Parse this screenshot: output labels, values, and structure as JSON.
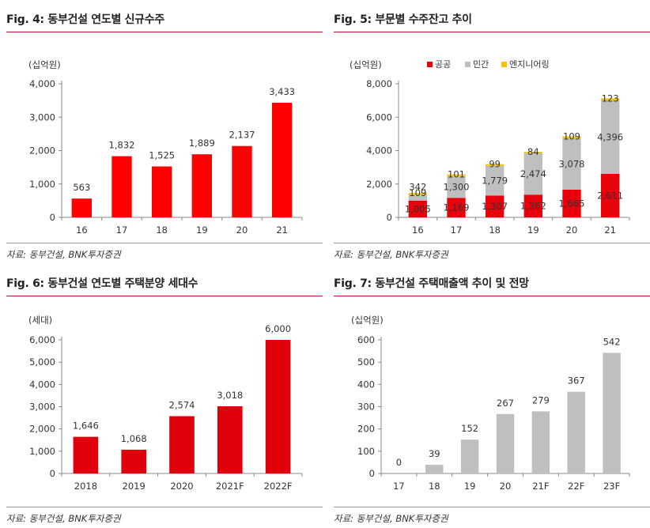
{
  "panels": [
    {
      "title": "Fig. 4: 동부건설 연도별 신규수주",
      "source": "자료: 동부건설, BNK투자증권",
      "chart_data": {
        "type": "bar",
        "unit_label": "(십억원)",
        "categories": [
          "16",
          "17",
          "18",
          "19",
          "20",
          "21"
        ],
        "series": [
          {
            "values": [
              563,
              1832,
              1525,
              1889,
              2137,
              3433
            ],
            "color": "#ff0000"
          }
        ],
        "value_labels": [
          "563",
          "1,832",
          "1,525",
          "1,889",
          "2,137",
          "3,433"
        ],
        "ylim": [
          0,
          4000
        ],
        "yticks": [
          0,
          1000,
          2000,
          3000,
          4000
        ],
        "ytick_labels": [
          "0",
          "1,000",
          "2,000",
          "3,000",
          "4,000"
        ],
        "grid": false
      }
    },
    {
      "title": "Fig. 5: 부문별 수주잔고 추이",
      "source": "자료: 동부건설, BNK투자증권",
      "chart_data": {
        "type": "bar",
        "stacked": true,
        "unit_label": "(십억원)",
        "categories": [
          "16",
          "17",
          "18",
          "19",
          "20",
          "21"
        ],
        "series": [
          {
            "name": "공공",
            "color": "#e8000b",
            "values": [
              1005,
              1169,
              1307,
              1362,
              1665,
              2611
            ],
            "labels": [
              "1,005",
              "1,169",
              "1,307",
              "1,362",
              "1,665",
              "2,611"
            ]
          },
          {
            "name": "민간",
            "color": "#bfbfbf",
            "values": [
              342,
              1300,
              1779,
              2474,
              3078,
              4396
            ],
            "labels": [
              "342",
              "1,300",
              "1,779",
              "2,474",
              "3,078",
              "4,396"
            ]
          },
          {
            "name": "엔지니어링",
            "color": "#f5c400",
            "values": [
              109,
              101,
              99,
              84,
              109,
              123
            ],
            "labels": [
              "109",
              "101",
              "99",
              "84",
              "109",
              "123"
            ]
          }
        ],
        "ylim": [
          0,
          8000
        ],
        "yticks": [
          0,
          2000,
          4000,
          6000,
          8000
        ],
        "ytick_labels": [
          "0",
          "2,000",
          "4,000",
          "6,000",
          "8,000"
        ],
        "legend_position": "top-center",
        "grid": false
      }
    },
    {
      "title": "Fig. 6: 동부건설 연도별 주택분양 세대수",
      "source": "자료: 동부건설, BNK투자증권",
      "chart_data": {
        "type": "bar",
        "unit_label": "(세대)",
        "categories": [
          "2018",
          "2019",
          "2020",
          "2021F",
          "2022F"
        ],
        "series": [
          {
            "values": [
              1646,
              1068,
              2574,
              3018,
              6000
            ],
            "color": "#e0000b"
          }
        ],
        "value_labels": [
          "1,646",
          "1,068",
          "2,574",
          "3,018",
          "6,000"
        ],
        "ylim": [
          0,
          6000
        ],
        "yticks": [
          0,
          1000,
          2000,
          3000,
          4000,
          5000,
          6000
        ],
        "ytick_labels": [
          "0",
          "1,000",
          "2,000",
          "3,000",
          "4,000",
          "5,000",
          "6,000"
        ],
        "grid": false
      }
    },
    {
      "title": "Fig. 7: 동부건설 주택매출액 추이 및 전망",
      "source": "자료: 동부건설, BNK투자증권",
      "chart_data": {
        "type": "bar",
        "unit_label": "(십억원)",
        "categories": [
          "17",
          "18",
          "19",
          "20",
          "21F",
          "22F",
          "23F"
        ],
        "series": [
          {
            "values": [
              0,
              39,
              152,
              267,
              279,
              367,
              542
            ],
            "color": "#bfbfbf"
          }
        ],
        "value_labels": [
          "0",
          "39",
          "152",
          "267",
          "279",
          "367",
          "542"
        ],
        "ylim": [
          0,
          600
        ],
        "yticks": [
          0,
          100,
          200,
          300,
          400,
          500,
          600
        ],
        "ytick_labels": [
          "0",
          "100",
          "200",
          "300",
          "400",
          "500",
          "600"
        ],
        "grid": false
      }
    }
  ]
}
